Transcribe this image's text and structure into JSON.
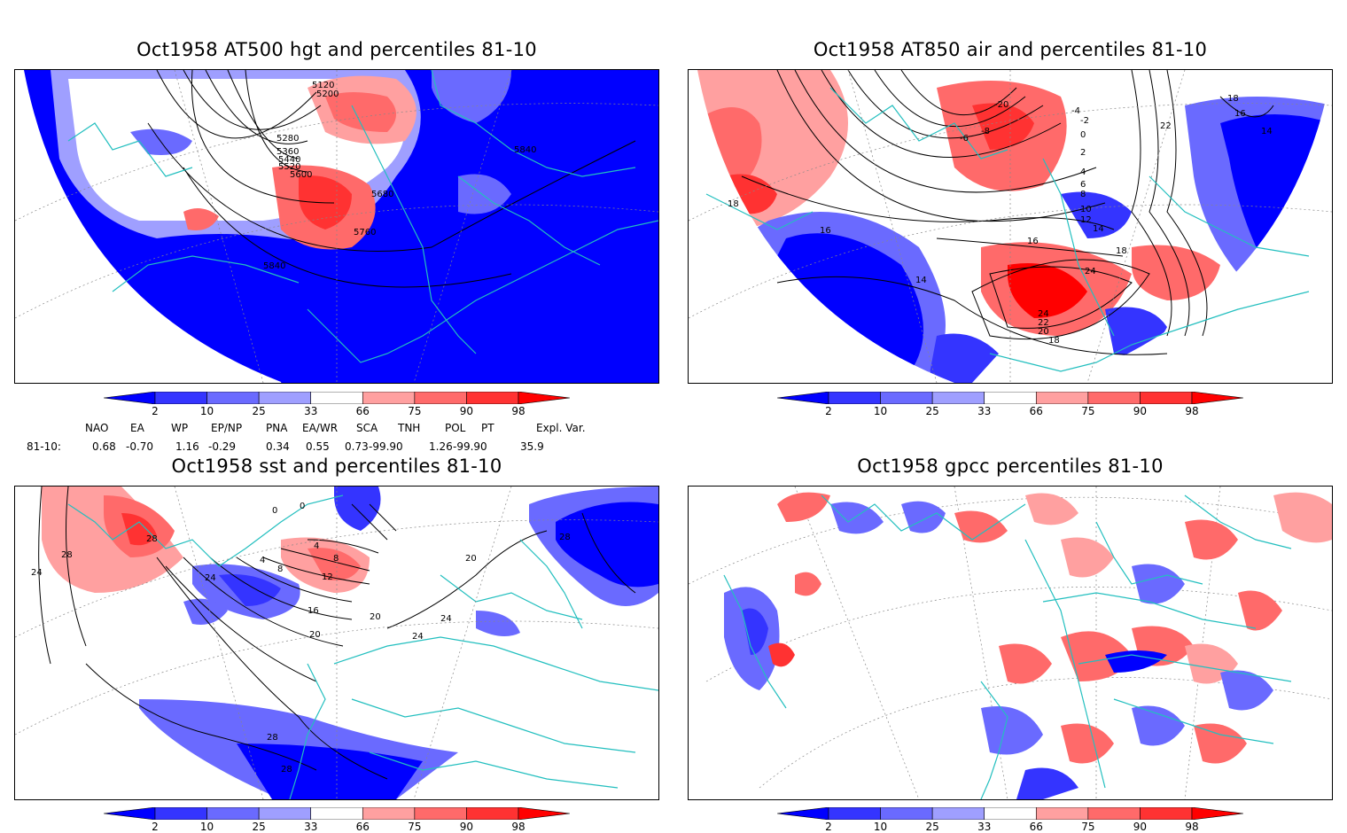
{
  "panels": [
    {
      "id": "p1",
      "title": "Oct1958 AT500 hgt and percentiles 81-10",
      "contour_labels": [
        "5120",
        "5200",
        "5280",
        "5360",
        "5440",
        "5520",
        "5600",
        "5680",
        "5760",
        "5840",
        "5840"
      ]
    },
    {
      "id": "p2",
      "title": "Oct1958 AT850 air and percentiles 81-10",
      "contour_labels": [
        "-20",
        "-8",
        "-6",
        "-4",
        "-2",
        "0",
        "2",
        "4",
        "6",
        "8",
        "10",
        "12",
        "14",
        "14",
        "16",
        "16",
        "18",
        "18",
        "18",
        "20",
        "22",
        "22",
        "24",
        "24",
        "14",
        "16",
        "18"
      ]
    },
    {
      "id": "p3",
      "title": "Oct1958 sst and percentiles 81-10",
      "contour_labels": [
        "0",
        "0",
        "4",
        "4",
        "8",
        "8",
        "12",
        "16",
        "20",
        "20",
        "24",
        "24",
        "24",
        "28",
        "28",
        "28",
        "28",
        "20",
        "24",
        "28"
      ]
    },
    {
      "id": "p4",
      "title": "Oct1958 gpcc percentiles 81-10",
      "contour_labels": []
    }
  ],
  "colorbar": {
    "labels": [
      "2",
      "10",
      "25",
      "33",
      "66",
      "75",
      "90",
      "98"
    ],
    "colors": [
      "#0000ff",
      "#3434ff",
      "#6a6aff",
      "#9f9fff",
      "#ffffff",
      "#ffa0a0",
      "#ff6a6a",
      "#ff3232",
      "#ff0000"
    ]
  },
  "indices": {
    "headers": [
      "NAO",
      "EA",
      "WP",
      "EP/NP",
      "PNA",
      "EA/WR",
      "SCA",
      "TNH",
      "POL",
      "PT",
      "Expl. Var."
    ],
    "row_label": "81-10:",
    "values": [
      "0.68",
      "-0.70",
      "1.16",
      "-0.29",
      "0.34",
      "0.55",
      "0.73",
      "-99.90",
      "1.26",
      "-99.90",
      "35.9"
    ]
  }
}
